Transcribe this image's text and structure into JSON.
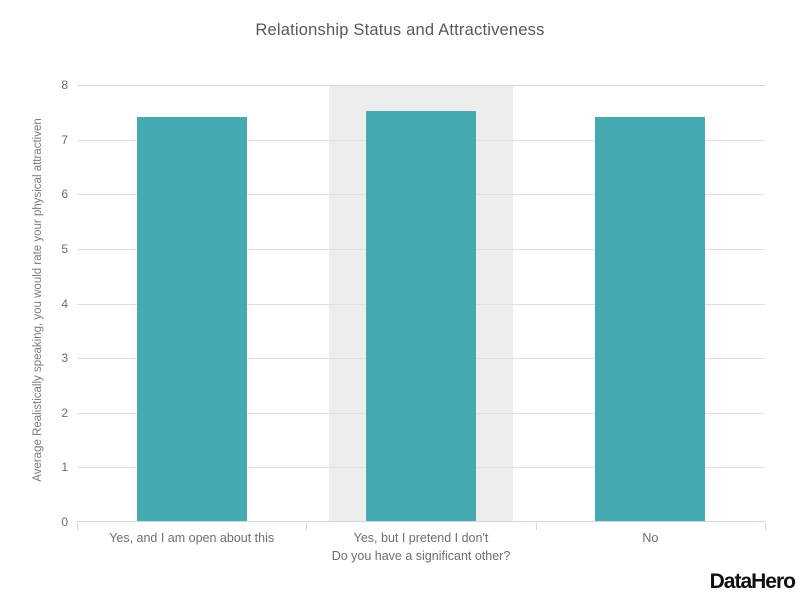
{
  "title": "Relationship Status and Attractiveness",
  "branding": {
    "logo_text": "DataHero"
  },
  "chart_data": {
    "type": "bar",
    "title": "Relationship Status and Attractiveness",
    "categories": [
      "Yes, and I am open about this",
      "Yes, but I pretend I don't",
      "No"
    ],
    "values": [
      7.4,
      7.5,
      7.4
    ],
    "xlabel": "Do you have a significant other?",
    "ylabel": "Average Realistically speaking, you would rate your physical attractiven",
    "ylim": [
      0,
      8
    ],
    "ytick_step": 1,
    "ytick_labels": [
      "0",
      "1",
      "2",
      "3",
      "4",
      "5",
      "6",
      "7",
      "8"
    ],
    "grid": true,
    "legend": false,
    "highlighted_category_index": 1,
    "highlighted_category": "Yes, but I pretend I don't",
    "bar_color": "#46abb0",
    "highlight_band_color": "#ededed",
    "axis_line_color": "#cfdae1",
    "gridline_color": "#e0e0e0",
    "title_color": "#58595b",
    "label_color": "#6d6e70"
  }
}
